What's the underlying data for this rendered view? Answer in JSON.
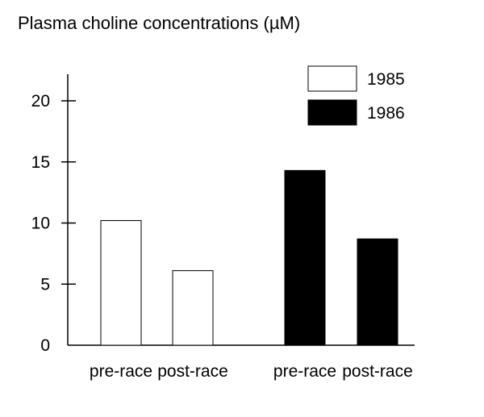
{
  "chart_data": {
    "type": "bar",
    "title": "Plasma choline concentrations (µM)",
    "categories": [
      "pre-race",
      "post-race",
      "pre-race",
      "post-race"
    ],
    "series": [
      {
        "name": "1985",
        "fill": "#ffffff",
        "values": [
          10.2,
          6.1,
          null,
          null
        ]
      },
      {
        "name": "1986",
        "fill": "#000000",
        "values": [
          null,
          null,
          14.3,
          8.7
        ]
      }
    ],
    "y_ticks": [
      "0",
      "5",
      "10",
      "15",
      "20"
    ],
    "ylim": [
      0,
      22
    ],
    "grid": false,
    "legend_position": "top-right"
  }
}
